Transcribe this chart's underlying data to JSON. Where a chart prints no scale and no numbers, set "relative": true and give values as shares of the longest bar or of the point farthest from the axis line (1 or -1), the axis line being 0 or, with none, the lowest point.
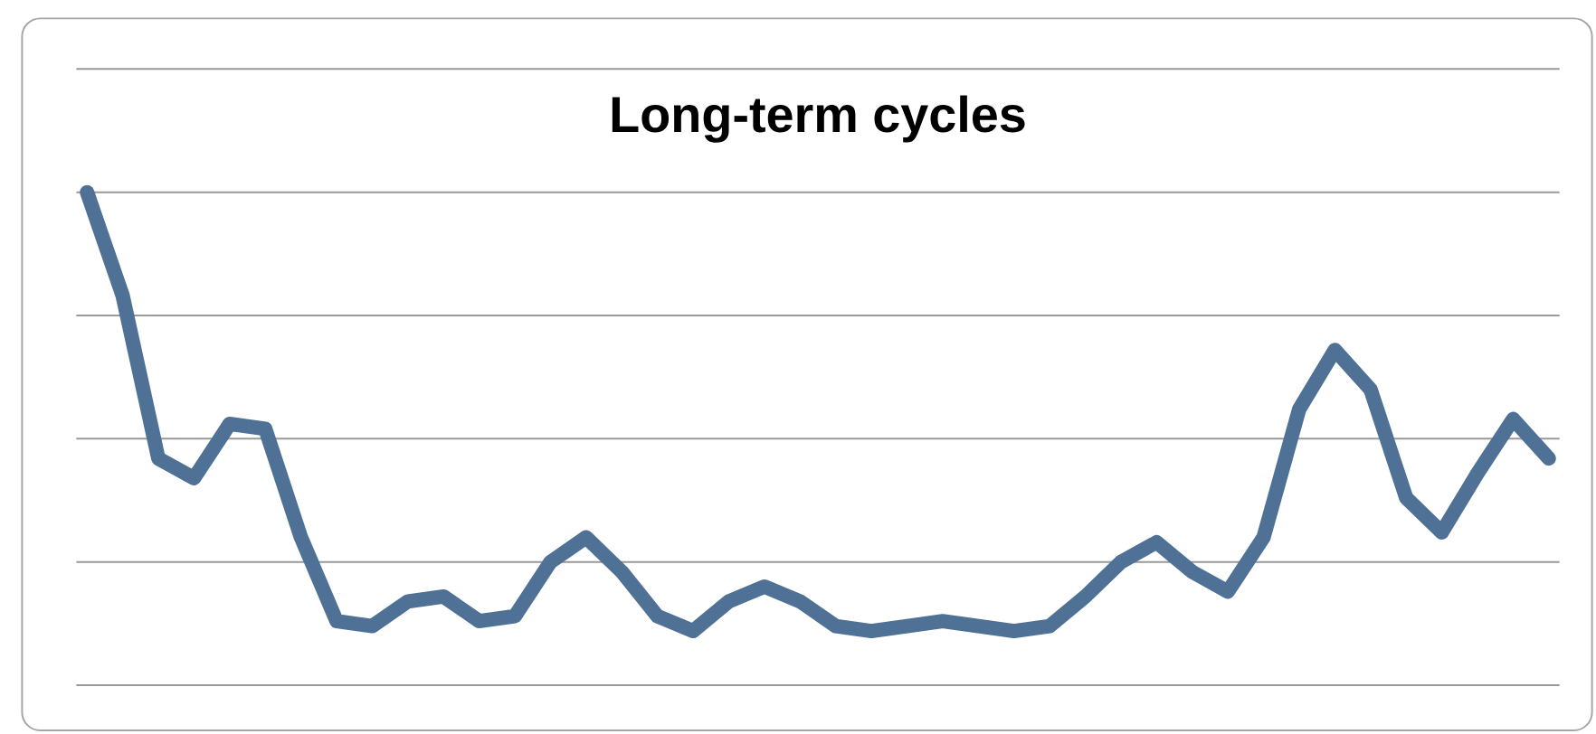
{
  "chart_data": {
    "type": "line",
    "title": "Long-term cycles",
    "relative": true,
    "grid": "y",
    "marker": "none",
    "line_style": "solid",
    "categories": [
      null,
      null,
      null,
      null,
      null,
      null,
      null,
      null,
      null,
      null,
      null,
      null,
      null,
      null,
      null,
      null,
      null,
      null,
      null,
      null,
      null,
      null,
      null,
      null,
      null,
      null,
      null,
      null,
      null,
      null,
      null,
      null,
      null,
      null,
      null,
      null,
      null,
      null,
      null,
      null,
      null,
      null
    ],
    "series": [
      {
        "color": "#4f7196",
        "values": [
          1.0,
          0.79,
          0.46,
          0.42,
          0.53,
          0.52,
          0.3,
          0.13,
          0.12,
          0.17,
          0.18,
          0.13,
          0.14,
          0.25,
          0.3,
          0.23,
          0.14,
          0.11,
          0.17,
          0.2,
          0.17,
          0.12,
          0.11,
          0.12,
          0.13,
          0.12,
          0.11,
          0.12,
          0.18,
          0.25,
          0.29,
          0.23,
          0.19,
          0.3,
          0.56,
          0.68,
          0.6,
          0.38,
          0.31,
          0.43,
          0.54,
          0.46
        ]
      }
    ]
  }
}
